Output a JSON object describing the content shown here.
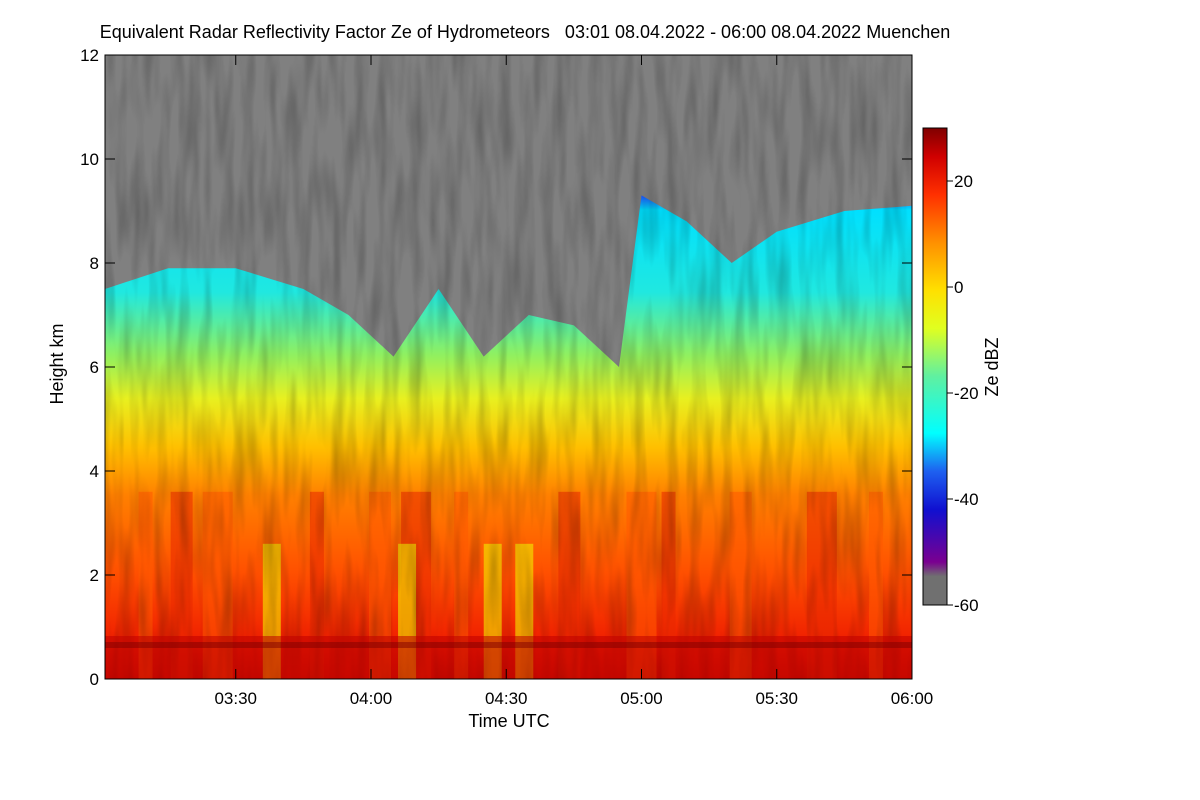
{
  "chart_data": {
    "type": "heatmap",
    "title": "Equivalent Radar Reflectivity Factor Ze of Hydrometeors   03:01 08.04.2022 - 06:00 08.04.2022 Muenchen",
    "xlabel": "Time UTC",
    "ylabel": "Height km",
    "x_range": [
      "03:01",
      "06:00"
    ],
    "x_ticks": [
      "03:30",
      "04:00",
      "04:30",
      "05:00",
      "05:30",
      "06:00"
    ],
    "y_range": [
      0,
      12
    ],
    "y_ticks": [
      "0",
      "2",
      "4",
      "6",
      "8",
      "10",
      "12"
    ],
    "colorbar": {
      "label": "Ze dBZ",
      "range": [
        -60,
        30
      ],
      "ticks": [
        "20",
        "0",
        "-20",
        "-40",
        "-60"
      ]
    },
    "no_signal_color": "#808080",
    "echo_top_km": [
      {
        "time": "03:01",
        "height": 7.5
      },
      {
        "time": "03:15",
        "height": 7.9
      },
      {
        "time": "03:30",
        "height": 7.9
      },
      {
        "time": "03:45",
        "height": 7.5
      },
      {
        "time": "03:55",
        "height": 7.0
      },
      {
        "time": "04:05",
        "height": 6.2
      },
      {
        "time": "04:15",
        "height": 7.5
      },
      {
        "time": "04:25",
        "height": 6.2
      },
      {
        "time": "04:35",
        "height": 7.0
      },
      {
        "time": "04:45",
        "height": 6.8
      },
      {
        "time": "04:55",
        "height": 6.0
      },
      {
        "time": "05:00",
        "height": 9.3
      },
      {
        "time": "05:10",
        "height": 8.8
      },
      {
        "time": "05:20",
        "height": 8.0
      },
      {
        "time": "05:30",
        "height": 8.6
      },
      {
        "time": "05:45",
        "height": 9.0
      },
      {
        "time": "06:00",
        "height": 9.1
      }
    ]
  }
}
